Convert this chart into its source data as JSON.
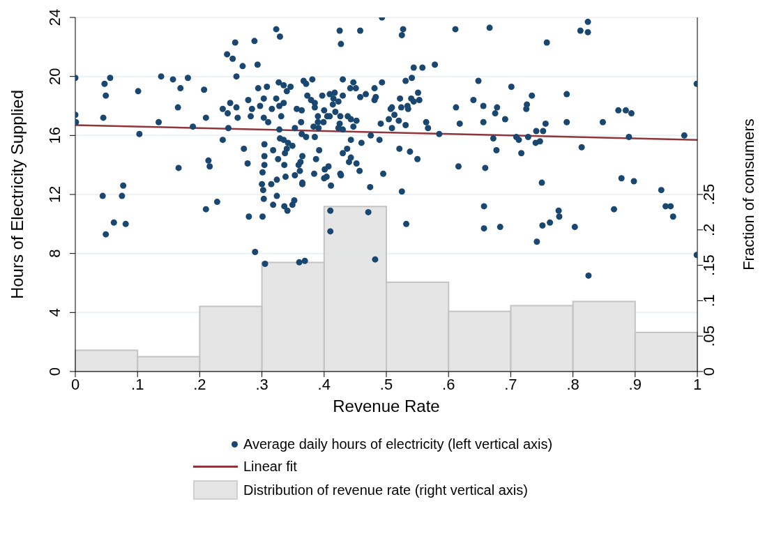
{
  "chart_data": {
    "type": "scatter",
    "xlabel": "Revenue Rate",
    "ylabel": "Hours of Electricity Supplied",
    "y2label": "Fraction of consumers",
    "xlim": [
      0,
      1
    ],
    "xticks": [
      0,
      {
        "value": 0.1,
        "label": ".1"
      },
      {
        "value": 0.2,
        "label": ".2"
      },
      {
        "value": 0.3,
        "label": ".3"
      },
      {
        "value": 0.4,
        "label": ".4"
      },
      {
        "value": 0.5,
        "label": ".5"
      },
      {
        "value": 0.6,
        "label": ".6"
      },
      {
        "value": 0.7,
        "label": ".7"
      },
      {
        "value": 0.8,
        "label": ".8"
      },
      {
        "value": 0.9,
        "label": ".9"
      },
      1
    ],
    "ylim": [
      0,
      24
    ],
    "yticks": [
      0,
      4,
      8,
      12,
      16,
      20,
      24
    ],
    "y2lim": [
      0,
      0.5
    ],
    "y2ticks": [
      0,
      {
        "value": 0.05,
        "label": ".05"
      },
      {
        "value": 0.1,
        "label": ".1"
      },
      {
        "value": 0.15,
        "label": ".15"
      },
      {
        "value": 0.2,
        "label": ".2"
      },
      {
        "value": 0.25,
        "label": ".25"
      }
    ],
    "grid": "y",
    "legend": "bottom",
    "series": [
      {
        "name": "Average daily hours of electricity (left vertical axis)",
        "color": "#1a476f",
        "marker": "circle",
        "x": [
          0.323,
          0.329,
          0.257,
          0.288,
          0.244,
          0.253,
          0.269,
          0.293,
          0,
          0.047,
          0.056,
          0.049,
          0.138,
          0.157,
          0.181,
          0.169,
          0.101,
          0.207,
          0.259,
          0,
          0.001,
          0.045,
          0.134,
          0.165,
          0.21,
          0.189,
          0.103,
          0.237,
          0.245,
          0.249,
          0.259,
          0.261,
          0.246,
          0.278,
          0.284,
          0.282,
          0.303,
          0.297,
          0.294,
          0.308,
          0.316,
          0.303,
          0.31,
          0.323,
          0.327,
          0.237,
          0.271,
          0.277,
          0.214,
          0.216,
          0.166,
          0.304,
          0.304,
          0.304,
          0.301,
          0.318,
          0.326,
          0.3,
          0.302,
          0.315,
          0.324,
          0.303,
          0.324,
          0.318,
          0.228,
          0.077,
          0.044,
          0.075,
          0.21,
          0.062,
          0.081,
          0.049,
          0.279,
          0.301,
          0.289,
          0.305,
          0.493,
          0.425,
          0.458,
          0.427,
          0.527,
          0.525,
          0.611,
          0.666,
          0.544,
          0.558,
          0.578,
          0.648,
          0.335,
          0.346,
          0.34,
          0.367,
          0.371,
          0.381,
          0.43,
          0.447,
          0.442,
          0.451,
          0.481,
          0.493,
          0.531,
          0.541,
          0.335,
          0.328,
          0.373,
          0.379,
          0.385,
          0.385,
          0.397,
          0.409,
          0.417,
          0.415,
          0.423,
          0.414,
          0.43,
          0.458,
          0.467,
          0.481,
          0.483,
          0.522,
          0.54,
          0.551,
          0.553,
          0.544,
          0.534,
          0.535,
          0.524,
          0.509,
          0.507,
          0.513,
          0.504,
          0.52,
          0.531,
          0.509,
          0.491,
          0.612,
          0.64,
          0.656,
          0.618,
          0.656,
          0.564,
          0.567,
          0.585,
          0.356,
          0.364,
          0.331,
          0.363,
          0.39,
          0.4,
          0.405,
          0.409,
          0.418,
          0.426,
          0.399,
          0.39,
          0.383,
          0.391,
          0.425,
          0.423,
          0.43,
          0.438,
          0.443,
          0.452,
          0.447,
          0.353,
          0.364,
          0.371,
          0.385,
          0.329,
          0.335,
          0.342,
          0.34,
          0.349,
          0.337,
          0.336,
          0.365,
          0.362,
          0.359,
          0.361,
          0.338,
          0.353,
          0.365,
          0.365,
          0.336,
          0.349,
          0.352,
          0.392,
          0.387,
          0.384,
          0.401,
          0.407,
          0.4,
          0.404,
          0.411,
          0.426,
          0.427,
          0.43,
          0.437,
          0.443,
          0.443,
          0.44,
          0.452,
          0.457,
          0.46,
          0.475,
          0.489,
          0.495,
          0.474,
          0.525,
          0.521,
          0.538,
          0.55,
          0.616,
          0.659,
          0.657,
          0.41,
          0.471,
          0.41,
          0.482,
          0.36,
          0.369,
          0.532,
          0.657,
          0.341,
          0.812,
          0.824,
          0.824,
          0.758,
          0.701,
          0.79,
          0.999,
          0.734,
          0.726,
          0.725,
          0.678,
          0.675,
          0.691,
          0.79,
          0.848,
          0.873,
          0.885,
          0.894,
          0.741,
          0.752,
          0.756,
          0.709,
          0.713,
          0.728,
          0.672,
          0.677,
          0.717,
          0.74,
          0.747,
          0.89,
          0.979,
          0.814,
          0.75,
          0.878,
          0.898,
          0.942,
          0.949,
          0.957,
          0.866,
          0.683,
          0.742,
          0.751,
          0.763,
          0.777,
          0.778,
          0.803,
          0.961,
          0.999,
          0.825,
          0.328
        ],
        "values": [
          23.2,
          22.7,
          22.3,
          22.4,
          21.5,
          21.2,
          20.7,
          20.8,
          19.9,
          19.5,
          19.9,
          18.7,
          20.0,
          19.8,
          19.9,
          19.2,
          19.0,
          19.1,
          20.0,
          17.4,
          16.9,
          17.2,
          16.9,
          17.9,
          17.2,
          16.6,
          16.1,
          17.8,
          17.5,
          18.2,
          17.9,
          17.2,
          16.5,
          18.4,
          17.8,
          17.3,
          18.5,
          18.0,
          19.2,
          19.3,
          17.8,
          17.2,
          16.9,
          18.5,
          19.6,
          15.7,
          15.1,
          14.1,
          14.3,
          13.9,
          13.8,
          15.4,
          14.6,
          14.0,
          13.5,
          15.0,
          14.4,
          12.7,
          12.3,
          12.7,
          13.0,
          11.7,
          11.9,
          11.3,
          11.5,
          12.6,
          11.9,
          11.9,
          11.0,
          10.1,
          10.0,
          9.3,
          10.5,
          10.5,
          8.1,
          7.3,
          24.0,
          23.1,
          23.1,
          22.2,
          23.2,
          22.8,
          23.2,
          23.3,
          20.6,
          20.6,
          20.8,
          19.7,
          19.4,
          19.3,
          19.0,
          19.7,
          19.5,
          19.8,
          19.8,
          19.6,
          19.2,
          19.2,
          19.2,
          19.6,
          19.7,
          19.9,
          18.2,
          18.0,
          18.7,
          18.4,
          18.2,
          17.9,
          18.7,
          18.8,
          18.9,
          18.5,
          18.3,
          18.1,
          18.7,
          18.6,
          18.8,
          18.4,
          18.6,
          18.5,
          18.5,
          18.9,
          18.4,
          18.3,
          18.0,
          17.8,
          17.9,
          17.9,
          17.8,
          17.4,
          17.1,
          17.0,
          16.7,
          16.5,
          16.8,
          17.9,
          18.4,
          18.0,
          16.8,
          16.9,
          16.9,
          16.5,
          16.1,
          17.8,
          17.7,
          17.3,
          16.9,
          17.3,
          17.7,
          17.3,
          17.3,
          17.6,
          17.3,
          16.9,
          16.9,
          16.6,
          16.5,
          16.8,
          16.5,
          16.4,
          17.3,
          17.1,
          17.0,
          16.6,
          16.5,
          16.1,
          15.9,
          15.9,
          15.8,
          15.7,
          15.5,
          15.1,
          15.3,
          14.8,
          14.0,
          14.6,
          14.2,
          14.0,
          13.6,
          13.2,
          13.3,
          12.8,
          12.7,
          11.2,
          11.3,
          11.6,
          15.0,
          14.4,
          13.4,
          13.7,
          13.9,
          13.1,
          13.2,
          12.6,
          13.4,
          13.3,
          14.8,
          15.1,
          15.7,
          14.5,
          14.2,
          14.1,
          13.6,
          15.5,
          16.0,
          15.7,
          13.4,
          12.5,
          12.2,
          15.1,
          14.9,
          14.4,
          13.9,
          13.8,
          11.2,
          10.9,
          10.8,
          9.5,
          7.6,
          7.4,
          7.5,
          10.0,
          9.7,
          10.9,
          23.1,
          23.7,
          23.0,
          22.3,
          19.3,
          18.8,
          19.5,
          18.7,
          18.1,
          17.8,
          17.9,
          17.5,
          17.1,
          16.9,
          16.9,
          17.7,
          17.7,
          17.5,
          16.3,
          16.3,
          16.8,
          15.9,
          15.7,
          15.9,
          15.8,
          15.0,
          14.8,
          15.5,
          15.6,
          15.9,
          16.0,
          15.2,
          12.8,
          13.1,
          12.9,
          12.3,
          11.2,
          11.2,
          11.0,
          9.8,
          8.8,
          9.9,
          10.1,
          10.9,
          10.5,
          9.8,
          10.5,
          7.9,
          6.5,
          16.4
        ]
      },
      {
        "type": "line",
        "name": "Linear fit",
        "color": "#90353b",
        "x": [
          0,
          1
        ],
        "values": [
          16.7,
          15.7
        ]
      },
      {
        "type": "histogram",
        "name": "Distribution of revenue rate (right vertical axis)",
        "color": "#dedede",
        "axis": "y2",
        "bins": [
          0,
          0.1,
          0.2,
          0.3,
          0.4,
          0.5,
          0.6,
          0.7,
          0.8,
          0.9,
          1
        ],
        "values": [
          0.03,
          0.021,
          0.092,
          0.154,
          0.233,
          0.126,
          0.085,
          0.093,
          0.099,
          0.055
        ]
      }
    ]
  }
}
